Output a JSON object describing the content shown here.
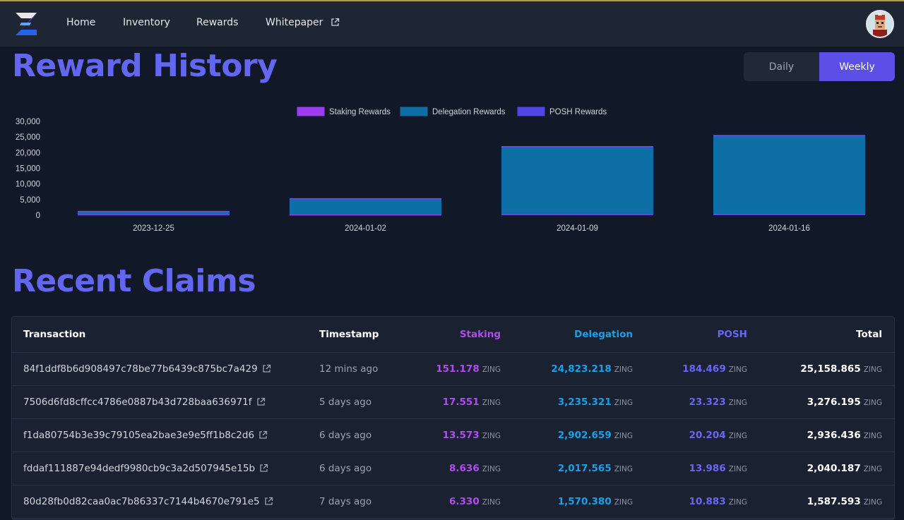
{
  "nav": {
    "home": "Home",
    "inventory": "Inventory",
    "rewards": "Rewards",
    "whitepaper": "Whitepaper"
  },
  "reward_history": {
    "title": "Reward History",
    "toggle": {
      "daily": "Daily",
      "weekly": "Weekly",
      "selected": "Weekly"
    }
  },
  "chart_data": {
    "type": "bar",
    "stacked": true,
    "categories": [
      "2023-12-25",
      "2024-01-02",
      "2024-01-09",
      "2024-01-16"
    ],
    "series": [
      {
        "name": "Staking Rewards",
        "color": "#9b3cf0",
        "values": [
          150,
          80,
          120,
          150
        ]
      },
      {
        "name": "Delegation Rewards",
        "color": "#0e6fa6",
        "values": [
          800,
          5000,
          21500,
          25000
        ]
      },
      {
        "name": "POSH Rewards",
        "color": "#4f46e5",
        "values": [
          200,
          150,
          250,
          280
        ]
      }
    ],
    "ylim": [
      0,
      30000
    ],
    "yticks": [
      "30,000",
      "25,000",
      "20,000",
      "15,000",
      "10,000",
      "5,000",
      "0"
    ],
    "legend": "top"
  },
  "recent_claims": {
    "title": "Recent Claims",
    "headers": {
      "transaction": "Transaction",
      "timestamp": "Timestamp",
      "staking": "Staking",
      "delegation": "Delegation",
      "posh": "POSH",
      "total": "Total"
    },
    "unit": "ZING",
    "rows": [
      {
        "tx": "84f1ddf8b6d908497c78be77b6439c875bc7a429",
        "time": "12 mins ago",
        "staking": "151.178",
        "delegation": "24,823.218",
        "posh": "184.469",
        "total": "25,158.865"
      },
      {
        "tx": "7506d6fd8cffcc4786e0887b43d728baa636971f",
        "time": "5 days ago",
        "staking": "17.551",
        "delegation": "3,235.321",
        "posh": "23.323",
        "total": "3,276.195"
      },
      {
        "tx": "f1da80754b3e39c79105ea2bae3e9e5ff1b8c2d6",
        "time": "6 days ago",
        "staking": "13.573",
        "delegation": "2,902.659",
        "posh": "20.204",
        "total": "2,936.436"
      },
      {
        "tx": "fddaf111887e94dedf9980cb9c3a2d507945e15b",
        "time": "6 days ago",
        "staking": "8.636",
        "delegation": "2,017.565",
        "posh": "13.986",
        "total": "2,040.187"
      },
      {
        "tx": "80d28fb0d82caa0ac7b86337c7144b4670e791e5",
        "time": "7 days ago",
        "staking": "6.330",
        "delegation": "1,570.380",
        "posh": "10.883",
        "total": "1,587.593"
      }
    ]
  }
}
